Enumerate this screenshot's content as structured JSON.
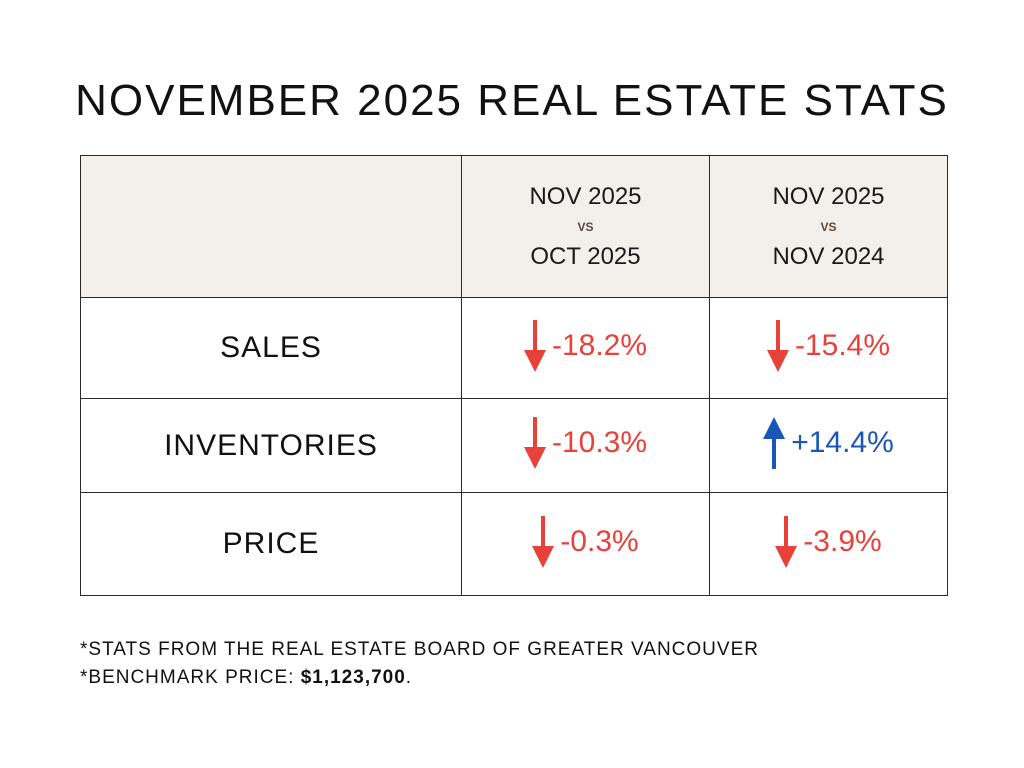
{
  "title": "NOVEMBER 2025 REAL ESTATE STATS",
  "colors": {
    "down": "#e8413a",
    "up": "#1a56b8",
    "header_bg": "#f3efea"
  },
  "table": {
    "header": {
      "col_a": {
        "line1": "NOV 2025",
        "vs": "VS",
        "line2": "OCT 2025"
      },
      "col_b": {
        "line1": "NOV 2025",
        "vs": "VS",
        "line2": "NOV 2024"
      }
    },
    "rows": [
      {
        "label": "SALES",
        "a": {
          "value": "-18.2%",
          "dir": "down",
          "icon": "arrow-down-icon"
        },
        "b": {
          "value": "-15.4%",
          "dir": "down",
          "icon": "arrow-down-icon"
        }
      },
      {
        "label": "INVENTORIES",
        "a": {
          "value": "-10.3%",
          "dir": "down",
          "icon": "arrow-down-icon"
        },
        "b": {
          "value": "+14.4%",
          "dir": "up",
          "icon": "arrow-up-icon"
        }
      },
      {
        "label": "PRICE",
        "a": {
          "value": "-0.3%",
          "dir": "down",
          "icon": "arrow-down-icon"
        },
        "b": {
          "value": "-3.9%",
          "dir": "down",
          "icon": "arrow-down-icon"
        }
      }
    ]
  },
  "footnotes": {
    "source": "*STATS FROM THE REAL ESTATE BOARD OF GREATER VANCOUVER",
    "benchmark_label": "*BENCHMARK PRICE: ",
    "benchmark_value": "$1,123,700",
    "benchmark_suffix": "."
  }
}
